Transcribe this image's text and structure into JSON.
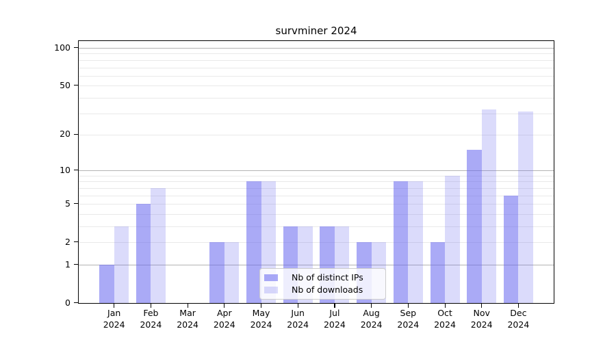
{
  "chart_data": {
    "type": "bar",
    "title": "survminer 2024",
    "year": "2024",
    "months": [
      "Jan",
      "Feb",
      "Mar",
      "Apr",
      "May",
      "Jun",
      "Jul",
      "Aug",
      "Sep",
      "Oct",
      "Nov",
      "Dec"
    ],
    "categories": [
      "Jan 2024",
      "Feb 2024",
      "Mar 2024",
      "Apr 2024",
      "May 2024",
      "Jun 2024",
      "Jul 2024",
      "Aug 2024",
      "Sep 2024",
      "Oct 2024",
      "Nov 2024",
      "Dec 2024"
    ],
    "series": [
      {
        "name": "Nb of distinct IPs",
        "values": [
          1,
          5,
          0,
          2,
          8,
          3,
          3,
          2,
          8,
          2,
          15,
          6
        ],
        "color": "rgba(102,102,238,0.556)"
      },
      {
        "name": "Nb of downloads",
        "values": [
          3,
          7,
          0,
          2,
          8,
          3,
          3,
          2,
          8,
          9,
          32,
          31
        ],
        "color": "rgba(102,102,238,0.235)"
      }
    ],
    "xlabel": "",
    "ylabel": "",
    "yscale": "log10(1+y)",
    "yticks": [
      0,
      1,
      2,
      5,
      10,
      20,
      50,
      100
    ],
    "ylim": [
      0,
      115
    ],
    "gridlines": {
      "major": [
        1,
        10,
        100
      ],
      "minor": [
        2,
        3,
        4,
        5,
        6,
        7,
        8,
        9,
        20,
        30,
        40,
        50,
        60,
        70,
        80,
        90
      ]
    },
    "legend_position": "lower center",
    "colors": {
      "axis": "#000000",
      "grid_major": "#b3b3b3",
      "grid_minor": "#e9e9e9",
      "legend_border": "#cccccc",
      "bar_base": "#6666ee"
    }
  }
}
